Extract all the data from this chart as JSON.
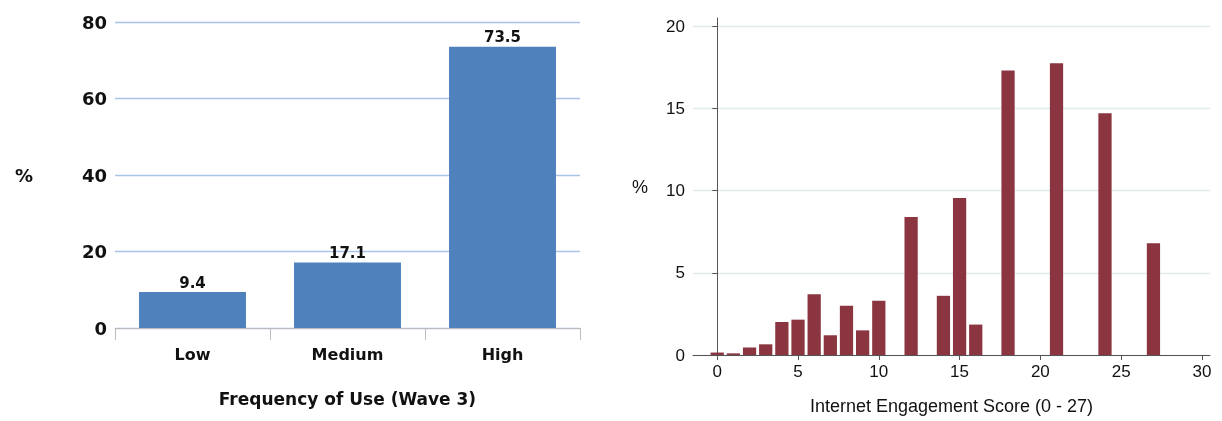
{
  "chart_data": [
    {
      "type": "bar",
      "xlabel": "Frequency of Use (Wave 3)",
      "ylabel": "%",
      "categories": [
        "Low",
        "Medium",
        "High"
      ],
      "values": [
        9.4,
        17.1,
        73.5
      ],
      "color": "#4f81bd",
      "ylim": [
        0,
        80
      ],
      "yticks": [
        0,
        20,
        40,
        60,
        80
      ],
      "grid": "y",
      "data_labels": true
    },
    {
      "type": "bar",
      "xlabel": "Internet Engagement Score (0 - 27)",
      "ylabel": "%",
      "x": [
        0,
        1,
        2,
        3,
        4,
        5,
        6,
        7,
        8,
        9,
        10,
        12,
        14,
        15,
        16,
        18,
        21,
        24,
        27
      ],
      "values": [
        0.15,
        0.1,
        0.45,
        0.65,
        2.0,
        2.15,
        3.7,
        1.2,
        3.0,
        1.5,
        3.3,
        8.4,
        3.6,
        9.55,
        1.85,
        17.3,
        17.75,
        14.7,
        6.8
      ],
      "color": "#8b3540",
      "xlim": [
        -1.5,
        30.5
      ],
      "xticks": [
        0,
        5,
        10,
        15,
        20,
        25,
        30
      ],
      "ylim": [
        0,
        20.5
      ],
      "yticks": [
        0,
        5,
        10,
        15,
        20
      ],
      "grid": "y"
    }
  ]
}
